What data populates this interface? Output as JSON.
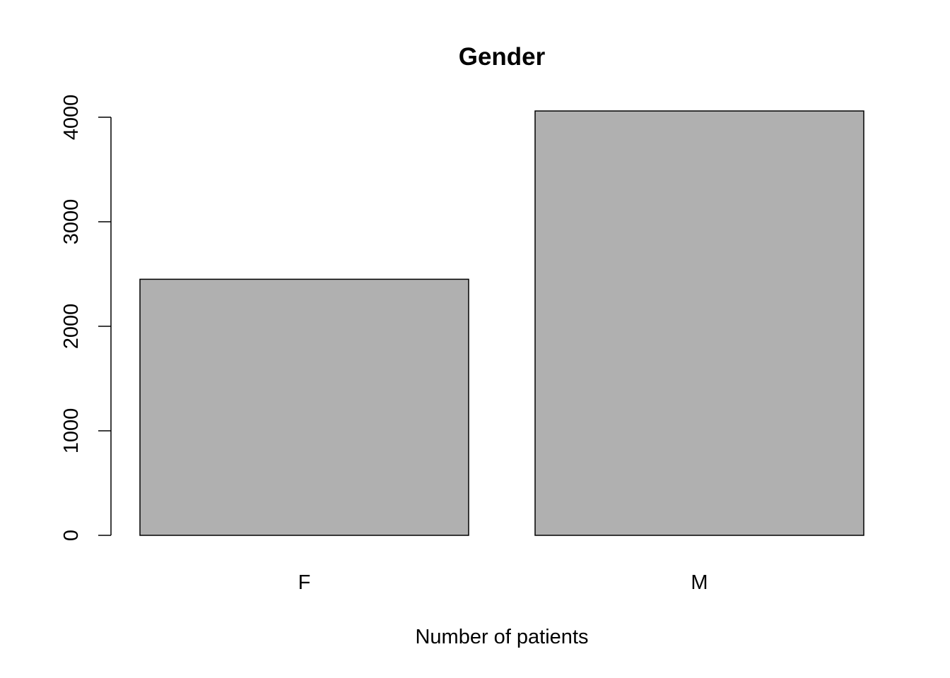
{
  "chart_data": {
    "type": "bar",
    "title": "Gender",
    "x_label": "Number of patients",
    "categories": [
      "F",
      "M"
    ],
    "values": [
      2450,
      4060
    ],
    "color": "#b0b0b0",
    "ylim": [
      0,
      4000
    ],
    "yticks": [
      0,
      1000,
      2000,
      3000,
      4000
    ],
    "grid": false
  }
}
